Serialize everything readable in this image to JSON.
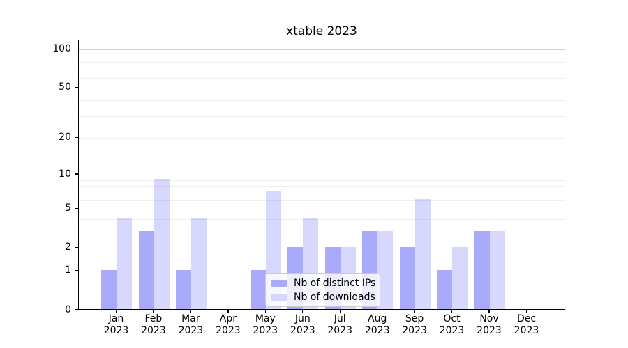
{
  "title": "xtable 2023",
  "chart_data": {
    "type": "bar",
    "title": "xtable 2023",
    "categories": [
      "Jan 2023",
      "Feb 2023",
      "Mar 2023",
      "Apr 2023",
      "May 2023",
      "Jun 2023",
      "Jul 2023",
      "Aug 2023",
      "Sep 2023",
      "Oct 2023",
      "Nov 2023",
      "Dec 2023"
    ],
    "series": [
      {
        "name": "Nb of distinct IPs",
        "values": [
          1,
          3,
          1,
          0,
          1,
          2,
          2,
          3,
          2,
          1,
          3,
          0
        ],
        "color": "#aaaaf9",
        "fill": "rgba(70,70,245,0.46)"
      },
      {
        "name": "Nb of downloads",
        "values": [
          4,
          9,
          4,
          0,
          7,
          4,
          2,
          3,
          6,
          2,
          3,
          0
        ],
        "color": "#d8d8fa",
        "fill": "rgba(70,70,245,0.21)"
      }
    ],
    "xlabel": "",
    "ylabel": "",
    "yscale": "log1p",
    "ylim": [
      0,
      117
    ],
    "y_ticks": [
      0,
      1,
      2,
      5,
      10,
      20,
      50,
      100
    ],
    "y_gridlines_minor": [
      2,
      3,
      4,
      5,
      6,
      7,
      8,
      9,
      20,
      30,
      40,
      50,
      60,
      70,
      80,
      90
    ],
    "y_gridlines_major": [
      1,
      10,
      100
    ],
    "grid": true,
    "grid_minor_color": "#efefef",
    "grid_major_color": "#d2d2d2",
    "axis_color": "#000000",
    "legend": {
      "position": "lower center",
      "labels": [
        "Nb of distinct IPs",
        "Nb of downloads"
      ]
    }
  }
}
